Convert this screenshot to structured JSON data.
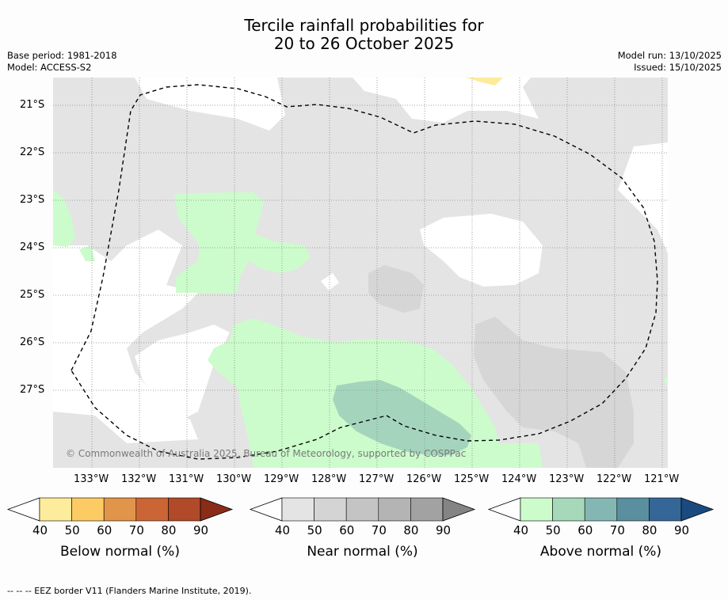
{
  "header": {
    "title_line1": "Tercile rainfall probabilities for",
    "title_line2": "20 to 26 October 2025",
    "base_period": "Base period: 1981-2018",
    "model": "Model: ACCESS-S2",
    "model_run": "Model run: 13/10/2025",
    "issued": "Issued: 15/10/2025"
  },
  "map": {
    "lat_labels": [
      "21°S",
      "22°S",
      "23°S",
      "24°S",
      "25°S",
      "26°S",
      "27°S"
    ],
    "lon_labels": [
      "133°W",
      "132°W",
      "131°W",
      "130°W",
      "129°W",
      "128°W",
      "127°W",
      "126°W",
      "125°W",
      "124°W",
      "123°W",
      "122°W",
      "121°W"
    ],
    "copyright": "© Commonwealth of Australia 2025, Bureau of Meteorology, supported by COSPPac",
    "colors": {
      "near_normal_40": "#e4e4e4",
      "near_normal_50": "#d6d6d6",
      "above_normal_40": "#ccfccc",
      "above_normal_50": "#a4d5bc",
      "below_normal_40": "#fdeb9b",
      "ocean_no_signal": "#ffffff"
    }
  },
  "colorbars": [
    {
      "title": "Below normal (%)",
      "ticks": [
        "40",
        "50",
        "60",
        "70",
        "80",
        "90"
      ],
      "colors": [
        "#fdec9c",
        "#fdcb63",
        "#e0954a",
        "#cc6535",
        "#b04a28",
        "#8a2c18"
      ]
    },
    {
      "title": "Near normal (%)",
      "ticks": [
        "40",
        "50",
        "60",
        "70",
        "80",
        "90"
      ],
      "colors": [
        "#e4e4e4",
        "#d4d4d4",
        "#c4c4c4",
        "#b4b4b4",
        "#a2a2a2",
        "#848484"
      ]
    },
    {
      "title": "Above normal (%)",
      "ticks": [
        "40",
        "50",
        "60",
        "70",
        "80",
        "90"
      ],
      "colors": [
        "#ccfccc",
        "#a6d9b9",
        "#84b7b4",
        "#5a8fa0",
        "#346797",
        "#1a4a80"
      ]
    }
  ],
  "footer": {
    "legend_text": "--  --  -- EEZ border V11 (Flanders Marine Institute, 2019)."
  }
}
